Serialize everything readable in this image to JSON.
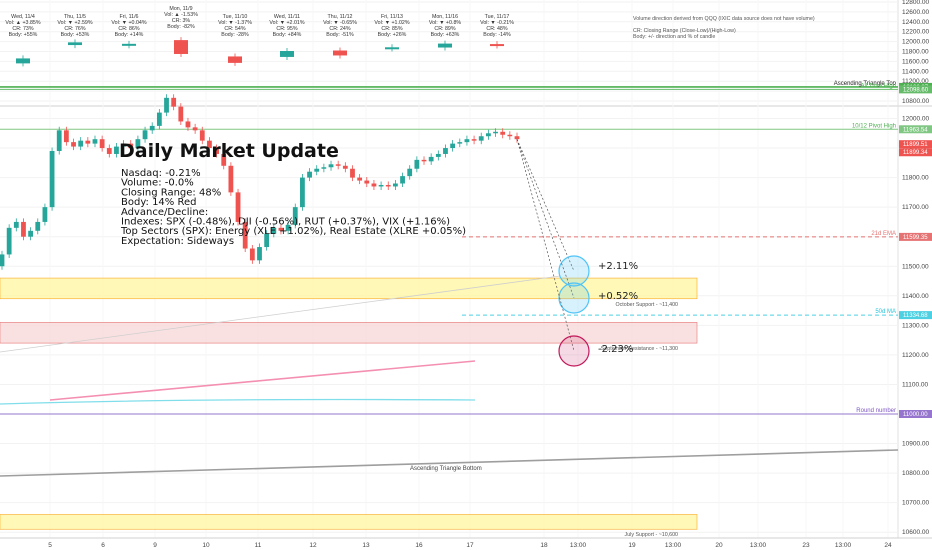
{
  "title": "Daily Market Update",
  "summary": [
    "Nasdaq: -0.21%",
    "Volume: -0.0%",
    "Closing Range: 48%",
    "Body: 14% Red",
    "Advance/Decline:",
    "Indexes: SPX (-0.48%), DJI (-0.56%), RUT (+0.37%), VIX (+1.16%)",
    "Top Sectors (SPX): Energy (XLE +1.02%), Real Estate (XLRE +0.05%)",
    "Expectation: Sideways"
  ],
  "legend_notes": [
    "Volume direction derived from QQQ (IXIC data source does not have volume)",
    "CR: Closing Range (Close-Low)/(High-Low)",
    "Body: +/- direction and % of candle"
  ],
  "colors": {
    "up": "#26a69a",
    "down": "#ef5350",
    "support_fill": "#fff59d",
    "resistance_fill": "#f8d7d7",
    "ema_line": "#f48fb1",
    "sma_line": "#80deea",
    "round_line": "#9e9e9e",
    "ath_line": "#66bb6a",
    "circle_blue": "#4fc3f7",
    "circle_red": "#c2185b"
  },
  "projections": [
    {
      "label": "+2.11%",
      "circle": "blue"
    },
    {
      "label": "+0.52%",
      "circle": "blue"
    },
    {
      "label": "-2.23%",
      "circle": "red"
    }
  ],
  "levels": [
    {
      "name": "Ascending Triangle Top",
      "value": 12106.87,
      "tag": "12106.87",
      "color": "#4caf50",
      "text_color": "#222"
    },
    {
      "name": "All Time High",
      "value": 12098.6,
      "tag": "12098.60",
      "color": "#66bb6a",
      "text_color": "#4caf50"
    },
    {
      "name": "10/12 Pivot High",
      "value": 11963.54,
      "tag": "11963.54",
      "color": "#81c784",
      "text_color": "#4caf50"
    },
    {
      "name": "21d EMA",
      "value": 11599.35,
      "tag": "11599.35",
      "color": "#e57373",
      "text_color": "#e57373"
    },
    {
      "name": "50d MA",
      "value": 11334.68,
      "tag": "11334.68",
      "color": "#4dd0e1",
      "text_color": "#26c6da"
    },
    {
      "name": "Round number",
      "value": 11000.0,
      "tag": "11000.00",
      "color": "#9575cd",
      "text_color": "#7e57c2"
    }
  ],
  "price_tags": [
    {
      "value": 11899.51,
      "tag": "11899.51"
    },
    {
      "value": 11899.34,
      "tag": "11899.34"
    }
  ],
  "zones": [
    {
      "name": "October Support - ~11,400",
      "label": "October Support - ~11,400",
      "top": 11460,
      "bottom": 11390,
      "type": "support"
    },
    {
      "name": "September Resistance - ~11,300",
      "label": "September Resistance - ~11,300",
      "top": 11310,
      "bottom": 11240,
      "type": "resistance"
    },
    {
      "name": "July Support - ~10,600",
      "label": "July Support - ~10,600",
      "top": 10660,
      "bottom": 10610,
      "type": "support"
    }
  ],
  "trend_label": "Ascending Triangle Bottom",
  "chart_data": [
    {
      "type": "table",
      "title": "",
      "columns": [
        "Day",
        "Vol",
        "CR",
        "Body",
        "Direction"
      ],
      "rows": [
        {
          "day": "Wed, 11/4",
          "vol": "Vol: ▲ +3.85%",
          "cr": "CR: 73%",
          "body": "Body: +55%",
          "dir": "up"
        },
        {
          "day": "Thu, 11/5",
          "vol": "Vol: ▼ +2.59%",
          "cr": "CR: 76%",
          "body": "Body: +53%",
          "dir": "up"
        },
        {
          "day": "Fri, 11/6",
          "vol": "Vol: ▼ +0.04%",
          "cr": "CR: 86%",
          "body": "Body: +14%",
          "dir": "up"
        },
        {
          "day": "Mon, 11/9",
          "vol": "Vol: ▲ -1.53%",
          "cr": "CR: 3%",
          "body": "Body: -82%",
          "dir": "down"
        },
        {
          "day": "Tue, 11/10",
          "vol": "Vol: ▼ -1.37%",
          "cr": "CR: 54%",
          "body": "Body: -28%",
          "dir": "down"
        },
        {
          "day": "Wed, 11/11",
          "vol": "Vol: ▼ +2.01%",
          "cr": "CR: 95%",
          "body": "Body: +84%",
          "dir": "up"
        },
        {
          "day": "Thu, 11/12",
          "vol": "Vol: ▼ -0.65%",
          "cr": "CR: 24%",
          "body": "Body: -51%",
          "dir": "down"
        },
        {
          "day": "Fri, 11/13",
          "vol": "Vol: ▼ +1.02%",
          "cr": "CR: 85%",
          "body": "Body: +26%",
          "dir": "up"
        },
        {
          "day": "Mon, 11/16",
          "vol": "Vol: ▼ +0.8%",
          "cr": "CR: 89%",
          "body": "Body: +63%",
          "dir": "up"
        },
        {
          "day": "Tue, 11/17",
          "vol": "Vol: ▼ -0.21%",
          "cr": "CR: 48%",
          "body": "Body: -14%",
          "dir": "down"
        }
      ]
    },
    {
      "type": "line",
      "title": "",
      "xlabel": "",
      "ylabel": "",
      "x_tick_labels": [
        "5",
        "6",
        "9",
        "10",
        "11",
        "12",
        "13",
        "16",
        "17",
        "18",
        "13:00",
        "19",
        "13:00",
        "20",
        "13:00",
        "23",
        "13:00",
        "24"
      ],
      "y_upper_ticks": [
        12800,
        12600,
        12400,
        12200,
        12000,
        11800,
        11600,
        11400,
        11200,
        11000,
        10800
      ],
      "y_upper_range": [
        10790,
        12810
      ],
      "y_lower_ticks": [
        13100,
        13000,
        12900,
        12800,
        12700,
        12600,
        12500,
        12400,
        12300,
        12200,
        12100,
        12000,
        11900,
        11800,
        11700,
        11600,
        11500,
        11400,
        11300,
        11200,
        11100,
        11000,
        10900,
        10800,
        10700,
        10600,
        10500
      ],
      "y_lower_range": [
        10410,
        13180
      ],
      "series": [
        {
          "name": "",
          "values": [
            11540,
            11630,
            11650,
            11600,
            11620,
            11650,
            11700,
            11890,
            11960,
            11920,
            11905,
            11925,
            11915,
            11930,
            11900,
            11880,
            11905,
            11915,
            11900,
            11930,
            11960,
            11975,
            12020,
            12070,
            12040,
            11990,
            11970,
            11960,
            11925,
            11900,
            11880,
            11840,
            11750,
            11650,
            11560,
            11520,
            11565,
            11610,
            11630,
            11620,
            11640,
            11700,
            11800,
            11820,
            11830,
            11835,
            11845,
            11840,
            11830,
            11800,
            11790,
            11780,
            11770,
            11775,
            11770,
            11780,
            11805,
            11830,
            11860,
            11855,
            11870,
            11880,
            11900,
            11915,
            11920,
            11930,
            11925,
            11940,
            11950,
            11955,
            11945,
            11940,
            11930
          ]
        }
      ]
    }
  ]
}
